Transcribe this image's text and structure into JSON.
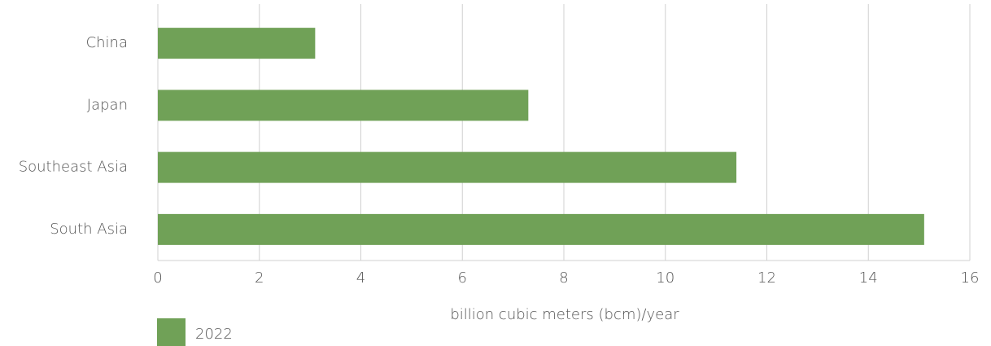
{
  "chart_data": {
    "type": "bar",
    "orientation": "horizontal",
    "categories": [
      "China",
      "Japan",
      "Southeast Asia",
      "South Asia"
    ],
    "series": [
      {
        "name": "2022",
        "color": "#70a157",
        "values": [
          3.1,
          7.3,
          11.4,
          15.1
        ]
      }
    ],
    "xlim": [
      0,
      16
    ],
    "xticks": [
      0,
      2,
      4,
      6,
      8,
      10,
      12,
      14,
      16
    ],
    "x_label": "billion cubic meters (bcm)/year",
    "grid": true,
    "legend": "bottom-left"
  }
}
